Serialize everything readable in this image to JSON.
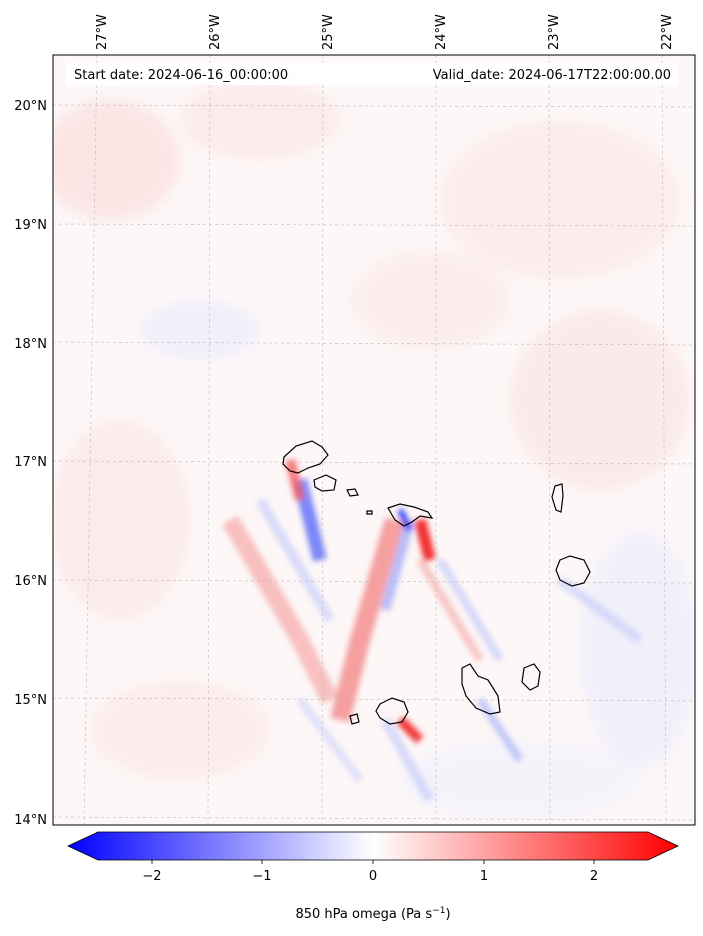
{
  "header": {
    "start_date": "Start date: 2024-06-16_00:00:00",
    "valid_date": "Valid_date: 2024-06-17T22:00:00.00"
  },
  "map": {
    "lon_labels": [
      "27°W",
      "26°W",
      "25°W",
      "24°W",
      "23°W",
      "22°W"
    ],
    "lat_labels": [
      "20°N",
      "19°N",
      "18°N",
      "17°N",
      "16°N",
      "15°N",
      "14°N"
    ],
    "lon_range": [
      -27.35,
      -21.7
    ],
    "lat_range": [
      13.95,
      20.45
    ],
    "variable": "850 hPa omega",
    "islands": [
      "Santo Antão",
      "São Vicente",
      "Santa Luzia",
      "São Nicolau",
      "Sal",
      "Boa Vista",
      "Maio",
      "Santiago",
      "Fogo",
      "Brava"
    ]
  },
  "colorbar": {
    "ticks": [
      -2,
      -1,
      0,
      1,
      2
    ],
    "tick_labels": [
      "−2",
      "−1",
      "0",
      "1",
      "2"
    ],
    "range": [
      -2.5,
      2.5
    ],
    "label": "850 hPa omega (Pa s",
    "label_unit_sup": "−1",
    "label_close": ")",
    "colormap": "bwr",
    "color_negative": "#0000ff",
    "color_zero": "#ffffff",
    "color_positive": "#ff0000",
    "extend": "both"
  }
}
